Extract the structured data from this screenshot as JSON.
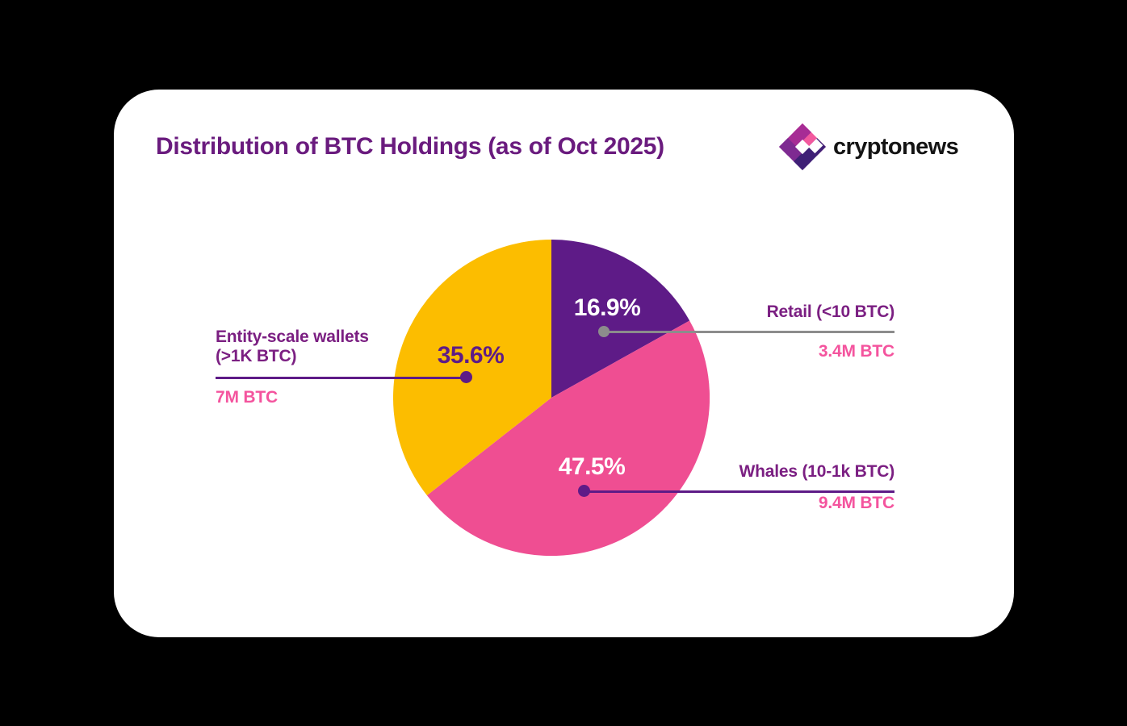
{
  "page": {
    "background": "#000000",
    "card_background": "#FFFFFF"
  },
  "header": {
    "title": "Distribution of BTC Holdings (as of Oct 2025)",
    "logo_text": "cryptonews"
  },
  "chart_data": {
    "type": "pie",
    "title": "Distribution of BTC Holdings (as of Oct 2025)",
    "unit": "BTC",
    "direction": "clockwise",
    "start_angle_deg": 0,
    "legend_position": "external-callouts",
    "slices": [
      {
        "label": "Retail (<10 BTC)",
        "pct": 16.9,
        "pct_label": "16.9%",
        "amount": "3.4M BTC",
        "color": "#5E1B87"
      },
      {
        "label": "Whales (10-1k BTC)",
        "pct": 47.5,
        "pct_label": "47.5%",
        "amount": "9.4M BTC",
        "color": "#EF4E92"
      },
      {
        "label": "Entity-scale wallets (>1K BTC)",
        "pct": 35.6,
        "pct_label": "35.6%",
        "amount": "7M BTC",
        "color": "#FCBD00"
      }
    ]
  },
  "callouts": {
    "retail": {
      "label": "Retail (<10 BTC)",
      "amount": "3.4M BTC"
    },
    "whales": {
      "label": "Whales (10-1k BTC)",
      "amount": "9.4M BTC"
    },
    "entity": {
      "label_line1": "Entity-scale wallets",
      "label_line2": "(>1K BTC)",
      "amount": "7M BTC"
    }
  },
  "colors": {
    "slice_retail": "#5E1B87",
    "slice_whales": "#EF4E92",
    "slice_entity": "#FCBD00",
    "callout_label_purple": "#7B1F82",
    "value_pink": "#F4549E",
    "line_gray": "#8C8C8C",
    "line_purple": "#5E1B87",
    "title_purple": "#6A1B7E"
  }
}
